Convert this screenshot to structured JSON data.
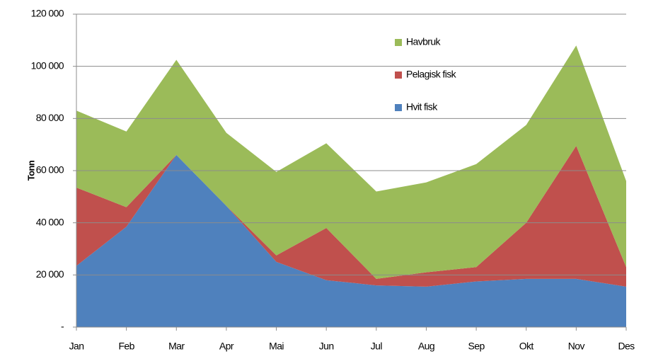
{
  "chart_data": {
    "type": "stacked_area",
    "y_label": "Tonn",
    "categories": [
      "Jan",
      "Feb",
      "Mar",
      "Apr",
      "Mai",
      "Jun",
      "Jul",
      "Aug",
      "Sep",
      "Okt",
      "Nov",
      "Des"
    ],
    "series": [
      {
        "name": "Hvit fisk",
        "color": "#4f81bd",
        "values": [
          23500,
          38500,
          66000,
          46500,
          25000,
          18000,
          16000,
          15500,
          17500,
          18500,
          18500,
          15500
        ]
      },
      {
        "name": "Pelagisk fisk",
        "color": "#c0504d",
        "values": [
          30000,
          7500,
          0,
          0,
          2500,
          20000,
          2500,
          5500,
          5500,
          21500,
          51000,
          7500
        ]
      },
      {
        "name": "Havbruk",
        "color": "#9bbb59",
        "values": [
          29500,
          29000,
          36500,
          28000,
          32000,
          32500,
          33500,
          34500,
          39500,
          37500,
          38500,
          33000
        ]
      }
    ],
    "ylim": [
      0,
      120000
    ],
    "yticks": [
      {
        "value": 0,
        "label": "-"
      },
      {
        "value": 20000,
        "label": "20 000"
      },
      {
        "value": 40000,
        "label": "40 000"
      },
      {
        "value": 60000,
        "label": "60 000"
      },
      {
        "value": 80000,
        "label": "80 000"
      },
      {
        "value": 100000,
        "label": "100 000"
      },
      {
        "value": 120000,
        "label": "120 000"
      }
    ],
    "grid": true
  }
}
